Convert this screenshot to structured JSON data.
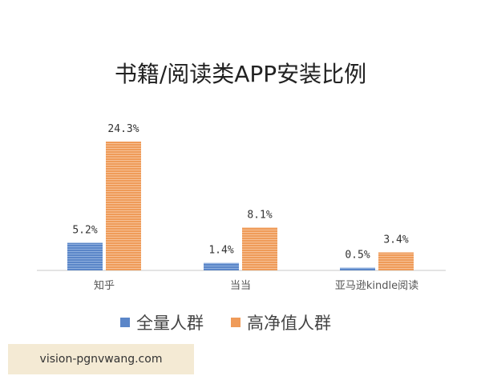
{
  "chart_data": {
    "type": "bar",
    "title": "书籍/阅读类APP安装比例",
    "categories": [
      "知乎",
      "当当",
      "亚马逊kindle阅读"
    ],
    "series": [
      {
        "name": "全量人群",
        "values": [
          5.2,
          1.4,
          0.5
        ],
        "labels": [
          "5.2%",
          "1.4%",
          "0.5%"
        ]
      },
      {
        "name": "高净值人群",
        "values": [
          24.3,
          8.1,
          3.4
        ],
        "labels": [
          "24.3%",
          "8.1%",
          "3.4%"
        ]
      }
    ],
    "unit": "%",
    "ylim": [
      0,
      25
    ],
    "grid": false,
    "legend_position": "bottom"
  },
  "colors": {
    "series_1": "#5b86c8",
    "series_2": "#ef9b59",
    "axis": "#c8c8c8"
  },
  "watermark": "vision-pgnvwang.com"
}
